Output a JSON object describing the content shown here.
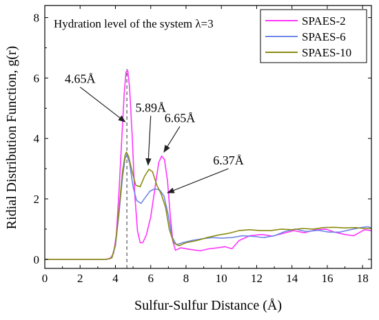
{
  "chart_data": {
    "type": "line",
    "title": "",
    "xlabel": "Sulfur-Sulfur Distance (Å)",
    "ylabel": "Ridial Distribution Function, g(r)",
    "xlim": [
      0,
      18.5
    ],
    "ylim": [
      -0.3,
      8.4
    ],
    "xticks": [
      "0",
      "2",
      "4",
      "6",
      "8",
      "10",
      "12",
      "14",
      "16",
      "18"
    ],
    "yticks": [
      "0",
      "2",
      "4",
      "6",
      "8"
    ],
    "grid": false,
    "legend_position": "top-right",
    "note": "Hydration level of the system λ=3",
    "series": [
      {
        "name": "SPAES-2",
        "color": "#ff33ff",
        "points": [
          [
            0,
            0
          ],
          [
            3.4,
            0
          ],
          [
            3.7,
            0.02
          ],
          [
            3.9,
            0.2
          ],
          [
            4.05,
            0.8
          ],
          [
            4.2,
            2.2
          ],
          [
            4.35,
            3.9
          ],
          [
            4.5,
            5.5
          ],
          [
            4.6,
            6.2
          ],
          [
            4.7,
            6.25
          ],
          [
            4.8,
            5.7
          ],
          [
            4.95,
            4.1
          ],
          [
            5.1,
            2.1
          ],
          [
            5.25,
            0.95
          ],
          [
            5.4,
            0.55
          ],
          [
            5.55,
            0.55
          ],
          [
            5.75,
            0.8
          ],
          [
            6.0,
            1.4
          ],
          [
            6.2,
            2.2
          ],
          [
            6.45,
            3.2
          ],
          [
            6.62,
            3.42
          ],
          [
            6.78,
            3.3
          ],
          [
            6.95,
            2.6
          ],
          [
            7.1,
            1.5
          ],
          [
            7.25,
            0.6
          ],
          [
            7.4,
            0.3
          ],
          [
            7.7,
            0.38
          ],
          [
            8.2,
            0.33
          ],
          [
            8.8,
            0.28
          ],
          [
            9.3,
            0.35
          ],
          [
            9.8,
            0.38
          ],
          [
            10.2,
            0.42
          ],
          [
            10.6,
            0.35
          ],
          [
            11.0,
            0.62
          ],
          [
            11.6,
            0.78
          ],
          [
            12.3,
            0.82
          ],
          [
            12.9,
            0.77
          ],
          [
            13.5,
            0.86
          ],
          [
            14.1,
            0.95
          ],
          [
            14.7,
            0.88
          ],
          [
            15.3,
            0.97
          ],
          [
            15.9,
            1.0
          ],
          [
            16.4,
            0.9
          ],
          [
            17.0,
            0.82
          ],
          [
            17.5,
            0.78
          ],
          [
            18.1,
            0.98
          ],
          [
            18.5,
            0.95
          ]
        ]
      },
      {
        "name": "SPAES-6",
        "color": "#6e86e6",
        "points": [
          [
            0,
            0
          ],
          [
            3.5,
            0
          ],
          [
            3.8,
            0.05
          ],
          [
            4.0,
            0.45
          ],
          [
            4.2,
            1.5
          ],
          [
            4.4,
            2.7
          ],
          [
            4.55,
            3.35
          ],
          [
            4.65,
            3.45
          ],
          [
            4.8,
            3.2
          ],
          [
            5.0,
            2.4
          ],
          [
            5.2,
            1.95
          ],
          [
            5.45,
            1.85
          ],
          [
            5.7,
            2.05
          ],
          [
            5.95,
            2.25
          ],
          [
            6.2,
            2.33
          ],
          [
            6.5,
            2.3
          ],
          [
            6.75,
            2.1
          ],
          [
            7.0,
            1.45
          ],
          [
            7.2,
            0.75
          ],
          [
            7.45,
            0.48
          ],
          [
            7.8,
            0.55
          ],
          [
            8.3,
            0.62
          ],
          [
            8.9,
            0.68
          ],
          [
            9.5,
            0.72
          ],
          [
            10.0,
            0.7
          ],
          [
            10.6,
            0.72
          ],
          [
            11.2,
            0.78
          ],
          [
            11.8,
            0.76
          ],
          [
            12.4,
            0.72
          ],
          [
            13.0,
            0.78
          ],
          [
            13.6,
            0.92
          ],
          [
            14.2,
            1.0
          ],
          [
            14.8,
            0.92
          ],
          [
            15.5,
            0.96
          ],
          [
            16.1,
            0.9
          ],
          [
            16.7,
            0.9
          ],
          [
            17.3,
            0.98
          ],
          [
            17.9,
            1.05
          ],
          [
            18.3,
            1.08
          ],
          [
            18.5,
            1.04
          ]
        ]
      },
      {
        "name": "SPAES-10",
        "color": "#8a8a10",
        "points": [
          [
            0,
            0
          ],
          [
            3.5,
            0
          ],
          [
            3.8,
            0.05
          ],
          [
            4.0,
            0.5
          ],
          [
            4.2,
            1.6
          ],
          [
            4.4,
            2.9
          ],
          [
            4.55,
            3.45
          ],
          [
            4.62,
            3.55
          ],
          [
            4.75,
            3.4
          ],
          [
            4.95,
            2.9
          ],
          [
            5.15,
            2.45
          ],
          [
            5.4,
            2.4
          ],
          [
            5.65,
            2.75
          ],
          [
            5.9,
            2.98
          ],
          [
            6.1,
            2.9
          ],
          [
            6.35,
            2.45
          ],
          [
            6.6,
            2.15
          ],
          [
            6.85,
            1.7
          ],
          [
            7.05,
            1.0
          ],
          [
            7.3,
            0.55
          ],
          [
            7.6,
            0.45
          ],
          [
            8.0,
            0.55
          ],
          [
            8.6,
            0.62
          ],
          [
            9.2,
            0.72
          ],
          [
            9.8,
            0.8
          ],
          [
            10.4,
            0.86
          ],
          [
            11.0,
            0.95
          ],
          [
            11.6,
            0.98
          ],
          [
            12.2,
            0.95
          ],
          [
            12.8,
            0.95
          ],
          [
            13.4,
            1.0
          ],
          [
            14.0,
            0.98
          ],
          [
            14.6,
            1.02
          ],
          [
            15.2,
            1.0
          ],
          [
            15.8,
            1.05
          ],
          [
            16.4,
            1.06
          ],
          [
            17.0,
            1.04
          ],
          [
            17.6,
            1.05
          ],
          [
            18.1,
            1.02
          ],
          [
            18.5,
            1.02
          ]
        ]
      }
    ],
    "reference_line": {
      "x": 4.65,
      "style": "dashed",
      "color": "#555555"
    },
    "annotations": [
      {
        "text": "4.65Å",
        "text_at": [
          2.0,
          5.7
        ],
        "arrow_to": [
          4.55,
          4.55
        ]
      },
      {
        "text": "5.89Å",
        "text_at": [
          6.0,
          4.75
        ],
        "arrow_to": [
          5.85,
          3.12
        ]
      },
      {
        "text": "6.65Å",
        "text_at": [
          7.65,
          4.4
        ],
        "arrow_to": [
          6.75,
          3.55
        ]
      },
      {
        "text": "6.37Å",
        "text_at": [
          10.4,
          3.0
        ],
        "arrow_to": [
          6.95,
          2.2
        ]
      }
    ]
  }
}
